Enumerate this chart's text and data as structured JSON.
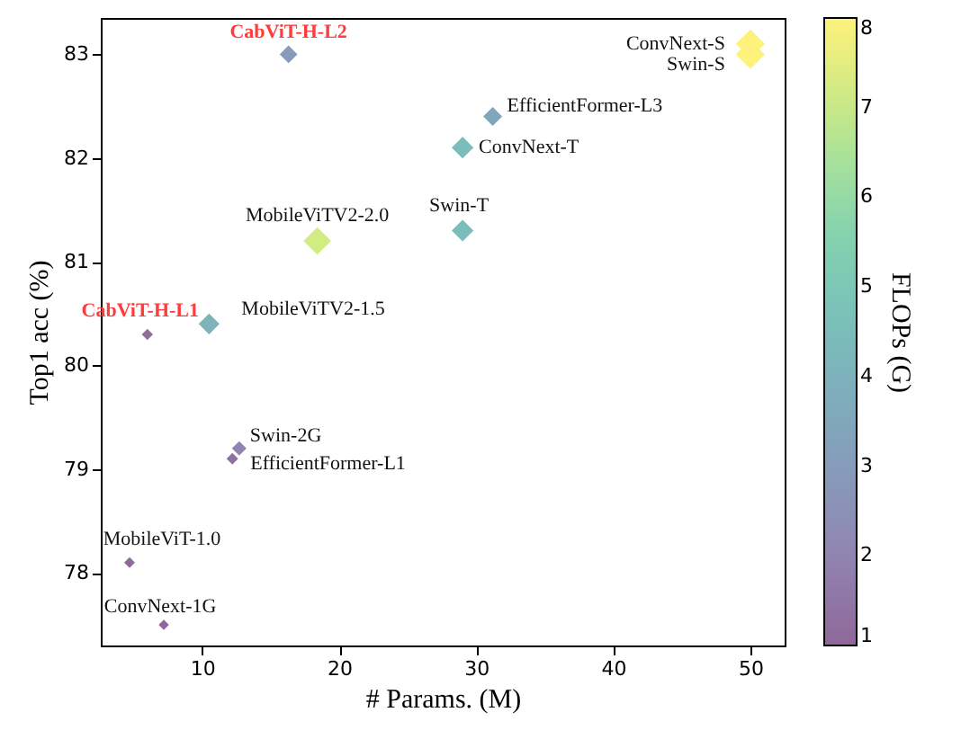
{
  "chart_data": {
    "type": "scatter",
    "xlabel": "# Params. (M)",
    "ylabel": "Top1 acc (%)",
    "clabel": "FLOPs (G)",
    "marker": "diamond",
    "grid": false,
    "xlim": [
      2.6,
      52.5
    ],
    "ylim": [
      77.3,
      83.35
    ],
    "xticks": [
      10,
      20,
      30,
      40,
      50
    ],
    "yticks": [
      78,
      79,
      80,
      81,
      82,
      83
    ],
    "clim": [
      1,
      8
    ],
    "cticks": [
      1,
      2,
      3,
      4,
      5,
      6,
      7,
      8
    ],
    "x": [
      50,
      50,
      16.3,
      31.2,
      29,
      29,
      18.4,
      10.5,
      6.0,
      12.7,
      12.2,
      4.7,
      7.2
    ],
    "values": [
      83.1,
      83.0,
      83.0,
      82.4,
      82.1,
      81.3,
      81.2,
      80.4,
      80.3,
      79.2,
      79.1,
      78.1,
      77.5
    ],
    "cvalues": [
      8,
      8,
      3.0,
      3.4,
      4.5,
      4.5,
      7.2,
      4.1,
      1.2,
      2.0,
      1.3,
      1.1,
      1.0
    ],
    "sizes": [
      1,
      1,
      0.375,
      0.425,
      0.5625,
      0.5625,
      0.9,
      0.5125,
      0.15,
      0.25,
      0.1625,
      0.1375,
      0.125
    ],
    "annotations": [
      {
        "text": "ConvNext-S",
        "x": 50,
        "y": 83.1
      },
      {
        "text": "Swin-S",
        "x": 50,
        "y": 83.0
      },
      {
        "text": "CabViT-H-L2",
        "x": 16.3,
        "y": 83.0
      },
      {
        "text": "EfficientFormer-L3",
        "x": 31.2,
        "y": 82.4
      },
      {
        "text": "ConvNext-T",
        "x": 29,
        "y": 82.1
      },
      {
        "text": "Swin-T",
        "x": 29,
        "y": 81.3
      },
      {
        "text": "MobileViTV2-2.0",
        "x": 18.4,
        "y": 81.2
      },
      {
        "text": "MobileViTV2-1.5",
        "x": 10.5,
        "y": 80.4
      },
      {
        "text": "CabViT-H-L1",
        "x": 6.0,
        "y": 80.3
      },
      {
        "text": "Swin-2G",
        "x": 12.7,
        "y": 79.2
      },
      {
        "text": "EfficientFormer-L1",
        "x": 12.2,
        "y": 79.1
      },
      {
        "text": "MobileViT-1.0",
        "x": 4.7,
        "y": 78.1
      },
      {
        "text": "ConvNext-1G",
        "x": 7.2,
        "y": 77.5
      }
    ]
  }
}
